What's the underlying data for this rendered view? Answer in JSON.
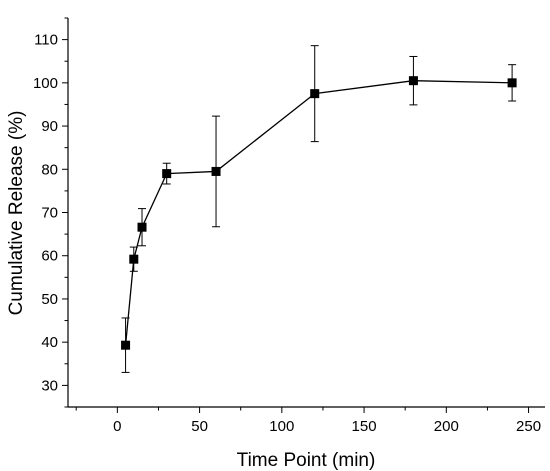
{
  "chart_data": {
    "type": "line",
    "title": "",
    "xlabel": "Time Point (min)",
    "ylabel": "Cumulative Release (%)",
    "xlim": [
      -30,
      260
    ],
    "ylim": [
      25,
      115
    ],
    "x_ticks": [
      0,
      50,
      100,
      150,
      200,
      250
    ],
    "y_ticks": [
      30,
      40,
      50,
      60,
      70,
      80,
      90,
      100,
      110
    ],
    "grid": false,
    "legend": "none",
    "series": [
      {
        "x": [
          5,
          10,
          15,
          30,
          60,
          120,
          180,
          240
        ],
        "y": [
          39.3,
          59.2,
          66.6,
          79.0,
          79.5,
          97.5,
          100.5,
          100.0
        ],
        "error": [
          6.3,
          2.8,
          4.3,
          2.4,
          12.8,
          11.1,
          5.6,
          4.2
        ],
        "marker": "square",
        "color": "#000000"
      }
    ]
  }
}
